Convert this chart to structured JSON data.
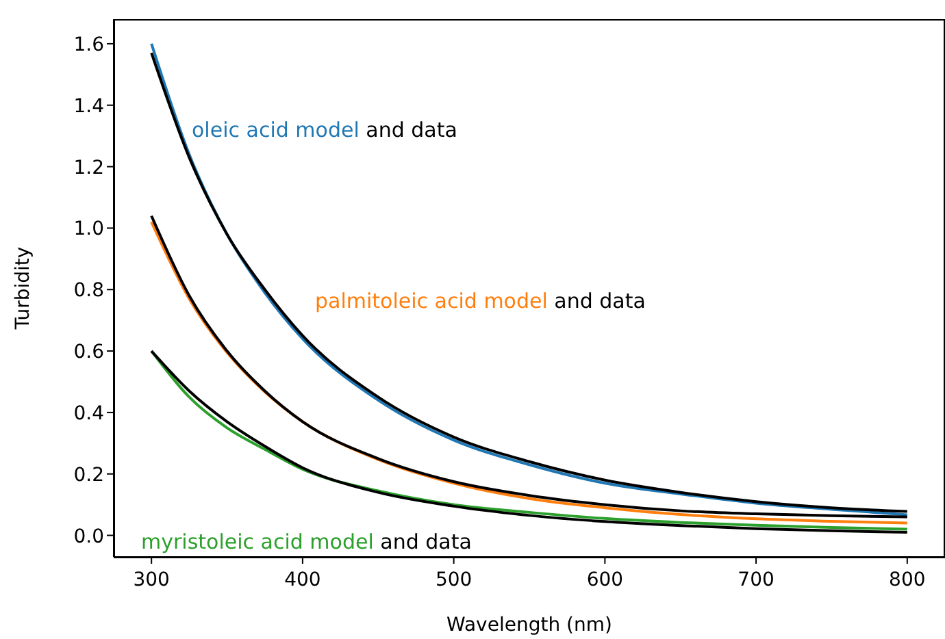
{
  "chart_data": {
    "type": "line",
    "xlabel": "Wavelength (nm)",
    "ylabel": "Turbidity",
    "x": [
      300,
      325,
      350,
      375,
      400,
      450,
      500,
      550,
      600,
      650,
      700,
      750,
      800
    ],
    "series": [
      {
        "name": "oleic acid model",
        "color": "#1f77b4",
        "values": [
          1.6,
          1.24,
          0.98,
          0.79,
          0.64,
          0.44,
          0.31,
          0.23,
          0.17,
          0.135,
          0.105,
          0.085,
          0.067
        ]
      },
      {
        "color": "#000000",
        "values": [
          1.57,
          1.23,
          0.98,
          0.8,
          0.65,
          0.45,
          0.32,
          0.24,
          0.18,
          0.14,
          0.11,
          0.09,
          0.078
        ]
      },
      {
        "name": "palmitoleic acid model",
        "color": "#ff7f0e",
        "values": [
          1.02,
          0.77,
          0.595,
          0.467,
          0.37,
          0.247,
          0.17,
          0.12,
          0.09,
          0.068,
          0.054,
          0.046,
          0.04
        ]
      },
      {
        "color": "#000000",
        "values": [
          1.04,
          0.78,
          0.6,
          0.47,
          0.37,
          0.25,
          0.175,
          0.13,
          0.1,
          0.08,
          0.07,
          0.064,
          0.06
        ]
      },
      {
        "name": "myristoleic acid model",
        "color": "#2ca02c",
        "values": [
          0.6,
          0.45,
          0.35,
          0.28,
          0.215,
          0.145,
          0.1,
          0.075,
          0.055,
          0.042,
          0.033,
          0.026,
          0.02
        ]
      },
      {
        "color": "#000000",
        "values": [
          0.6,
          0.47,
          0.37,
          0.29,
          0.22,
          0.14,
          0.095,
          0.065,
          0.045,
          0.032,
          0.022,
          0.015,
          0.01
        ]
      }
    ],
    "annotations": [
      "and data",
      "and data",
      "and data"
    ],
    "xlim": [
      275,
      825
    ],
    "xticks": [
      300,
      400,
      500,
      600,
      700,
      800
    ],
    "ylim": [
      -0.07,
      1.68
    ],
    "yticks": [
      {
        "value": 0,
        "label": "0.0"
      },
      0.2,
      0.4,
      0.6,
      0.8,
      {
        "value": 1,
        "label": "1.0"
      },
      1.2,
      1.4,
      1.6
    ],
    "grid": false,
    "marker": "none",
    "line_style": "solid"
  }
}
